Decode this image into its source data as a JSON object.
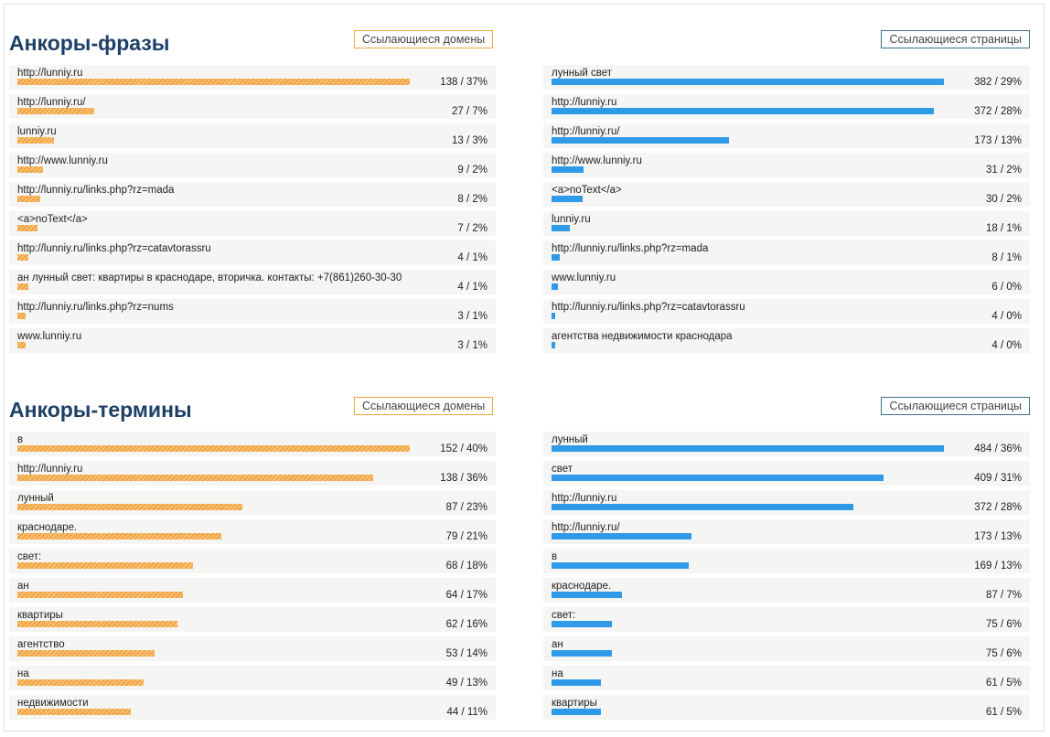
{
  "colors": {
    "title": "#1e3f66",
    "orange_bar": "#f2a33a",
    "blue_bar": "#2f9ae8"
  },
  "sections": [
    {
      "title": "Анкоры-фразы",
      "left_button": "Ссылающиеся домены",
      "right_button": "Ссылающиеся страницы",
      "left_max": 138,
      "right_max": 382,
      "left": [
        {
          "label": "http://lunniy.ru",
          "count": 138,
          "value": "138 / 37%"
        },
        {
          "label": "http://lunniy.ru/",
          "count": 27,
          "value": "27 / 7%"
        },
        {
          "label": "lunniy.ru",
          "count": 13,
          "value": "13 / 3%"
        },
        {
          "label": "http://www.lunniy.ru",
          "count": 9,
          "value": "9 / 2%"
        },
        {
          "label": "http://lunniy.ru/links.php?rz=mada",
          "count": 8,
          "value": "8 / 2%"
        },
        {
          "label": "<a>noText</a>",
          "count": 7,
          "value": "7 / 2%"
        },
        {
          "label": "http://lunniy.ru/links.php?rz=catavtorassru",
          "count": 4,
          "value": "4 / 1%"
        },
        {
          "label": "ан лунный свет: квартиры в краснодаре, вторичка. контакты: +7(861)260-30-30",
          "count": 4,
          "value": "4 / 1%"
        },
        {
          "label": "http://lunniy.ru/links.php?rz=nums",
          "count": 3,
          "value": "3 / 1%"
        },
        {
          "label": "www.lunniy.ru",
          "count": 3,
          "value": "3 / 1%"
        }
      ],
      "right": [
        {
          "label": "лунный свет",
          "count": 382,
          "value": "382 / 29%"
        },
        {
          "label": "http://lunniy.ru",
          "count": 372,
          "value": "372 / 28%"
        },
        {
          "label": "http://lunniy.ru/",
          "count": 173,
          "value": "173 / 13%"
        },
        {
          "label": "http://www.lunniy.ru",
          "count": 31,
          "value": "31 / 2%"
        },
        {
          "label": "<a>noText</a>",
          "count": 30,
          "value": "30 / 2%"
        },
        {
          "label": "lunniy.ru",
          "count": 18,
          "value": "18 / 1%"
        },
        {
          "label": "http://lunniy.ru/links.php?rz=mada",
          "count": 8,
          "value": "8 / 1%"
        },
        {
          "label": "www.lunniy.ru",
          "count": 6,
          "value": "6 / 0%"
        },
        {
          "label": "http://lunniy.ru/links.php?rz=catavtorassru",
          "count": 4,
          "value": "4 / 0%"
        },
        {
          "label": "агентства недвижимости краснодара",
          "count": 4,
          "value": "4 / 0%"
        }
      ]
    },
    {
      "title": "Анкоры-термины",
      "left_button": "Ссылающиеся домены",
      "right_button": "Ссылающиеся страницы",
      "left_max": 152,
      "right_max": 484,
      "left": [
        {
          "label": "в",
          "count": 152,
          "value": "152 / 40%"
        },
        {
          "label": "http://lunniy.ru",
          "count": 138,
          "value": "138 / 36%"
        },
        {
          "label": "лунный",
          "count": 87,
          "value": "87 / 23%"
        },
        {
          "label": "краснодаре.",
          "count": 79,
          "value": "79 / 21%"
        },
        {
          "label": "свет:",
          "count": 68,
          "value": "68 / 18%"
        },
        {
          "label": "ан",
          "count": 64,
          "value": "64 / 17%"
        },
        {
          "label": "квартиры",
          "count": 62,
          "value": "62 / 16%"
        },
        {
          "label": "агентство",
          "count": 53,
          "value": "53 / 14%"
        },
        {
          "label": "на",
          "count": 49,
          "value": "49 / 13%"
        },
        {
          "label": "недвижимости",
          "count": 44,
          "value": "44 / 11%"
        }
      ],
      "right": [
        {
          "label": "лунный",
          "count": 484,
          "value": "484 / 36%"
        },
        {
          "label": "свет",
          "count": 409,
          "value": "409 / 31%"
        },
        {
          "label": "http://lunniy.ru",
          "count": 372,
          "value": "372 / 28%"
        },
        {
          "label": "http://lunniy.ru/",
          "count": 173,
          "value": "173 / 13%"
        },
        {
          "label": "в",
          "count": 169,
          "value": "169 / 13%"
        },
        {
          "label": "краснодаре.",
          "count": 87,
          "value": "87 / 7%"
        },
        {
          "label": "свет:",
          "count": 75,
          "value": "75 / 6%"
        },
        {
          "label": "ан",
          "count": 75,
          "value": "75 / 6%"
        },
        {
          "label": "на",
          "count": 61,
          "value": "61 / 5%"
        },
        {
          "label": "квартиры",
          "count": 61,
          "value": "61 / 5%"
        }
      ]
    }
  ]
}
